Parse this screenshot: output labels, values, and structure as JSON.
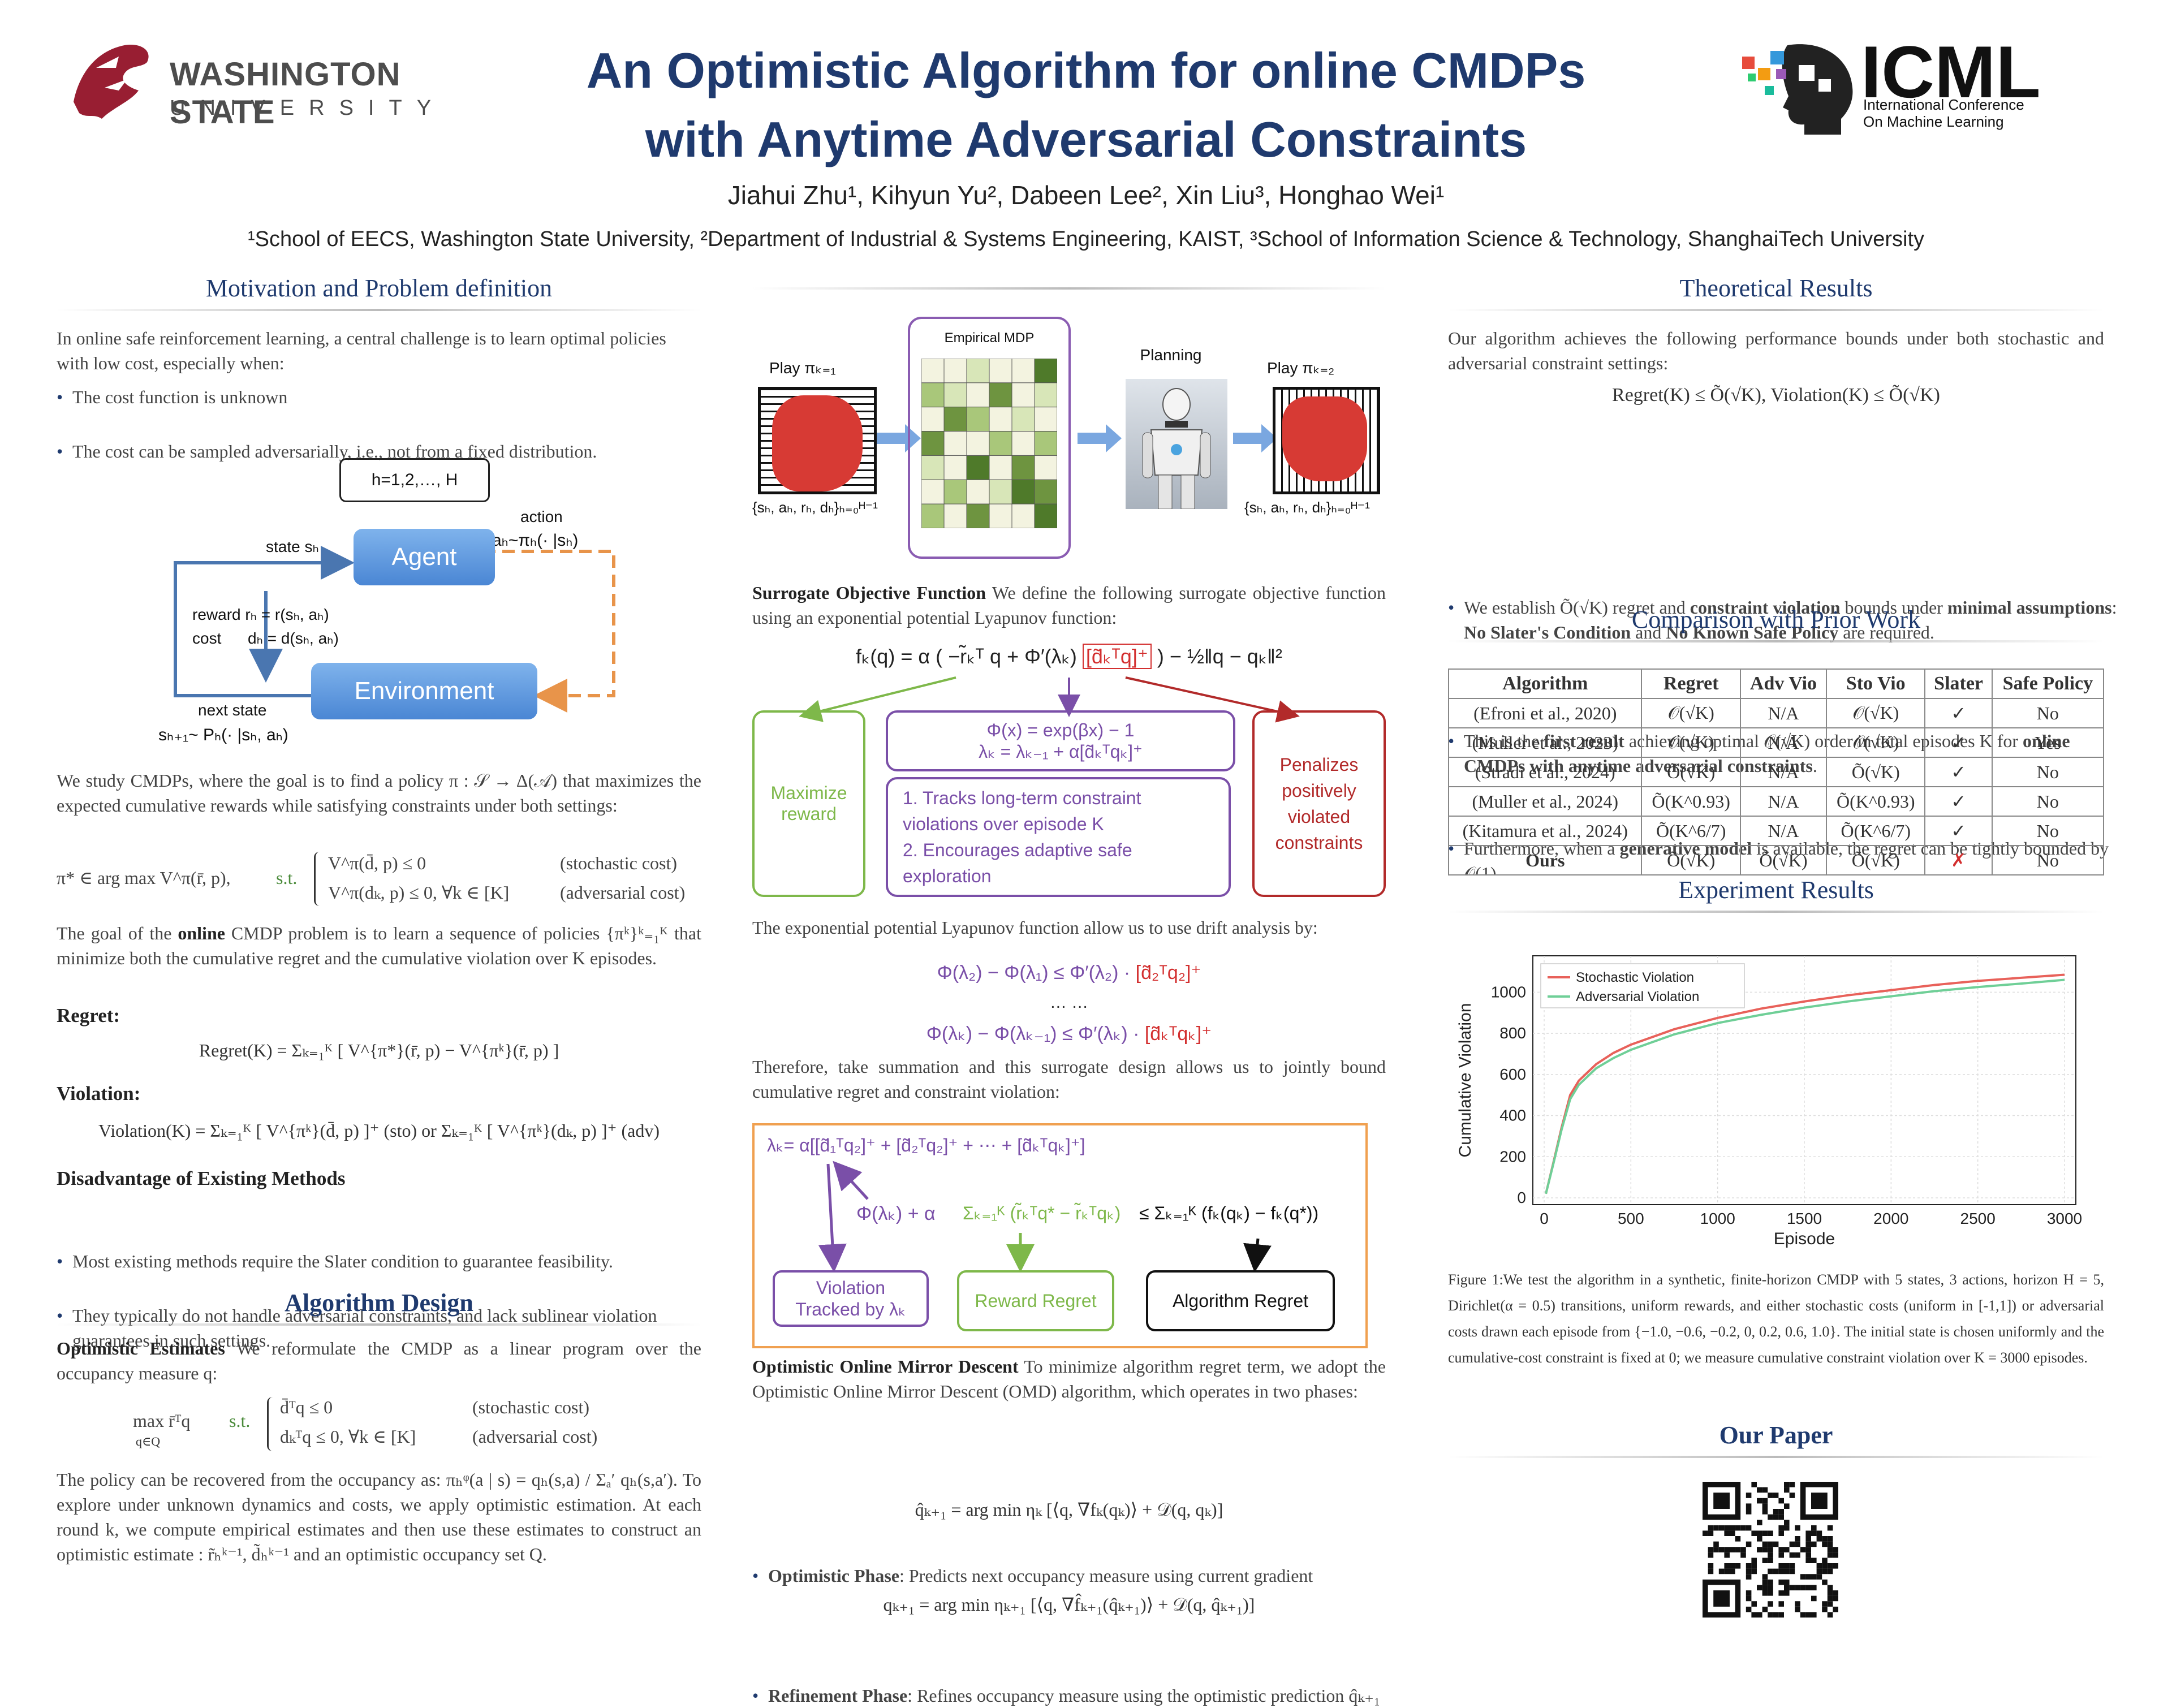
{
  "header": {
    "title_line1": "An Optimistic Algorithm for online CMDPs",
    "title_line2": "with Anytime Adversarial Constraints",
    "authors": "Jiahui Zhu¹, Kihyun Yu², Dabeen Lee², Xin Liu³, Honghao Wei¹",
    "affiliations": "¹School of EECS, Washington State University, ²Department of Industrial & Systems Engineering, KAIST, ³School of Information Science & Technology, ShanghaiTech University",
    "wsu_logo_line1": "WASHINGTON STATE",
    "wsu_logo_line2": "UNIVERSITY",
    "icml_logo": "ICML",
    "icml_sub1": "International Conference",
    "icml_sub2": "On Machine Learning"
  },
  "motivation": {
    "title": "Motivation and Problem definition",
    "intro": "In online safe reinforcement learning, a central challenge is to learn optimal policies with low cost, especially when:",
    "bullets": [
      "The cost function is unknown",
      "The cost can be sampled adversarially, i.e., not from a fixed distribution."
    ],
    "diagram": {
      "horizon": "h=1,2,…, H",
      "action": "action",
      "action_eq": "aₕ~πₕ(· |sₕ)",
      "state": "state sₕ",
      "agent": "Agent",
      "reward": "reward  rₕ = r(sₕ, aₕ)",
      "cost": "cost      dₕ = d(sₕ, aₕ)",
      "environment": "Environment",
      "next_state": "next state",
      "next_state_eq": "sₕ₊₁~ Pₕ(· |sₕ, aₕ)"
    },
    "cmdp_text": "We study CMDPs, where the goal is to find a policy π : 𝒮 → Δ(𝒜) that maximizes the expected cumulative rewards while satisfying constraints under both settings:",
    "opt_lhs": "π* ∈ arg max V^π(r̄, p),",
    "st": "s.t.",
    "c1": "V^π(d̄, p) ≤ 0",
    "c1_label": "(stochastic cost)",
    "c2": "V^π(dₖ, p) ≤ 0,  ∀k ∈ [K]",
    "c2_label": "(adversarial cost)",
    "goal_text_1": "The goal of the ",
    "goal_bold": "online",
    "goal_text_2": " CMDP problem is to learn a sequence of policies {πᵏ}ᵏ₌₁ᴷ that minimize both the cumulative regret and the cumulative violation over K episodes.",
    "regret_head": "Regret:",
    "regret_eq": "Regret(K) = Σₖ₌₁ᴷ [ V^{π*}(r̄, p) − V^{πᵏ}(r̄, p) ]",
    "violation_head": "Violation:",
    "violation_eq": "Violation(K) = Σₖ₌₁ᴷ [ V^{πᵏ}(d̄, p) ]⁺ (sto) or Σₖ₌₁ᴷ [ V^{πᵏ}(dₖ, p) ]⁺ (adv)",
    "disadv_head": "Disadvantage of Existing Methods",
    "disadv_bullets": [
      "Most existing methods require the Slater condition to guarantee feasibility.",
      "They typically do not handle adversarial constraints, and lack sublinear violation guarantees in such settings."
    ]
  },
  "algorithm": {
    "title": "Algorithm Design",
    "opt_head": "Optimistic Estimates",
    "opt_text": " We reformulate the CMDP as a linear program over the occupancy measure q:",
    "lp_obj": "max r̄ᵀq",
    "lp_under": "q∈Q",
    "st": "s.t.",
    "lp_c1": "d̄ᵀq ≤ 0",
    "lp_c1_label": "(stochastic cost)",
    "lp_c2": "dₖᵀq ≤ 0, ∀k ∈ [K]",
    "lp_c2_label": "(adversarial cost)",
    "policy_text": "The policy can be recovered from the occupancy as: πₕᵠ(a | s) = qₕ(s,a) / Σₐ′ qₕ(s,a′). To explore under unknown dynamics and costs, we apply optimistic estimation. At each round k, we compute empirical estimates and then use these estimates to construct an optimistic estimate : r̃ₕᵏ⁻¹, d̃ₕᵏ⁻¹ and an optimistic occupancy set Q."
  },
  "pipeline": {
    "play1": "Play πₖ₌₁",
    "tuple1": "{sₕ, aₕ, rₕ, dₕ}ₕ₌₀ᴴ⁻¹",
    "empirical": "Empirical MDP",
    "planning": "Planning",
    "play2": "Play πₖ₌₂",
    "tuple2": "{sₕ, aₕ, rₕ, dₕ}ₕ₌₀ᴴ⁻¹"
  },
  "surrogate": {
    "head": "Surrogate Objective Function",
    "text": " We define the following surrogate objective function using an exponential potential Lyapunov function:",
    "eq_left": "fₖ(q) = α ( −r̃ₖᵀ q + Φ′(λₖ) ",
    "eq_red": "[d̃ₖᵀq]⁺",
    "eq_right": " ) − ½‖q − qₖ‖²",
    "box_left": "Maximize reward",
    "box_mid_eq1": "Φ(x) = exp(βx) − 1",
    "box_mid_eq2": "λₖ = λₖ₋₁ + α[d̃ₖᵀqₖ]⁺",
    "box_mid_text": "1. Tracks long-term constraint violations over episode K\n2. Encourages adaptive safe exploration",
    "box_right": "Penalizes positively violated constraints",
    "drift_text": "The exponential potential Lyapunov function allow us to use drift analysis by:",
    "drift_eq1": "Φ(λ₂) − Φ(λ₁) ≤ Φ′(λ₂) · ",
    "drift_eq1_red": "[d̃₂ᵀq₂]⁺",
    "dots": "… …",
    "drift_eq2": "Φ(λₖ) − Φ(λₖ₋₁) ≤ Φ′(λₖ) · ",
    "drift_eq2_red": "[d̃ₖᵀqₖ]⁺",
    "sum_text": "Therefore, take summation and this surrogate design allows us to jointly bound cumulative regret and constraint violation:",
    "lam_eq": "λₖ= α[[d̃₁ᵀq₂]⁺ + [d̃₂ᵀq₂]⁺ + ⋯ + [d̃ₖᵀqₖ]⁺]",
    "bound_phi": "Φ(λₖ) + α",
    "bound_reward": "Σₖ₌₁ᴷ (r̃ₖᵀq* − r̃ₖᵀqₖ)",
    "bound_right": "≤ Σₖ₌₁ᴷ (fₖ(qₖ) − fₖ(q*))",
    "viol_box": "Violation Tracked by λₖ",
    "reward_box": "Reward Regret",
    "alg_box": "Algorithm Regret"
  },
  "omd": {
    "head": "Optimistic Online Mirror Descent",
    "text": " To minimize algorithm regret term, we adopt the Optimistic Online Mirror Descent (OMD) algorithm, which operates in two phases:",
    "phase1_head": "Optimistic Phase",
    "phase1_text": ": Predicts next occupancy measure using current gradient",
    "phase1_eq": "q̂ₖ₊₁ = arg min ηₖ [⟨q, ∇fₖ(qₖ)⟩ + 𝒟(q, qₖ)]",
    "phase2_head": "Refinement Phase",
    "phase2_text": ": Refines occupancy measure using the optimistic prediction q̂ₖ₊₁",
    "phase2_eq": "qₖ₊₁ = arg min ηₖ₊₁ [⟨q, ∇f̂ₖ₊₁(q̂ₖ₊₁)⟩ + 𝒟(q, q̂ₖ₊₁)]"
  },
  "theory": {
    "title": "Theoretical Results",
    "intro": "Our algorithm achieves the following performance bounds under both stochastic and adversarial constraint settings:",
    "bound": "Regret(K) ≤ Õ(√K),    Violation(K) ≤ Õ(√K)",
    "b1_a": "We establish Õ(√K) regret and ",
    "b1_b": "constraint violation",
    "b1_c": " bounds under ",
    "b1_d": "minimal assumptions",
    "b1_e": ": ",
    "b1_f": "No Slater's Condition",
    "b1_g": " and ",
    "b1_h": "No Known Safe Policy",
    "b1_i": " are required.",
    "b2_a": "This is the ",
    "b2_b": "first result",
    "b2_c": " achieving optimal 𝒪(√K) order in total episodes K for ",
    "b2_d": "online CMDPs with anytime adversarial constraints",
    "b2_e": ".",
    "b3_a": "Furthermore, when a ",
    "b3_b": "generative model",
    "b3_c": " is available, the regret can be tightly bounded by 𝒪(1)."
  },
  "comparison": {
    "title": "Comparison with Prior Work",
    "headers": [
      "Algorithm",
      "Regret",
      "Adv Vio",
      "Sto Vio",
      "Slater",
      "Safe Policy"
    ],
    "rows": [
      [
        "(Efroni et al., 2020)",
        "𝒪(√K)",
        "N/A",
        "𝒪(√K)",
        "✓",
        "No"
      ],
      [
        "(Muller et al., 2023)",
        "𝒪(√K)",
        "N/A",
        "𝒪(√K)",
        "✓",
        "Yes"
      ],
      [
        "(Stradi et al., 2024)",
        "Õ(√K)",
        "N/A",
        "Õ(√K)",
        "✓",
        "No"
      ],
      [
        "(Muller et al., 2024)",
        "Õ(K^0.93)",
        "N/A",
        "Õ(K^0.93)",
        "✓",
        "No"
      ],
      [
        "(Kitamura et al., 2024)",
        "Õ(K^6/7)",
        "N/A",
        "Õ(K^6/7)",
        "✓",
        "No"
      ],
      [
        "Ours",
        "Õ(√K)",
        "Õ(√K)",
        "Õ(√K)",
        "✗",
        "No"
      ]
    ]
  },
  "experiment": {
    "title": "Experiment Results",
    "caption": "Figure 1:We test the algorithm in a synthetic, finite-horizon CMDP with 5 states, 3 actions, horizon H = 5, Dirichlet(α = 0.5) transitions, uniform rewards, and either stochastic costs (uniform in [-1,1]) or adversarial costs drawn each episode from {−1.0, −0.6, −0.2, 0, 0.2, 0.6, 1.0}. The initial state is chosen uniformly and the cumulative-cost constraint is fixed at 0; we measure cumulative constraint violation over K = 3000 episodes."
  },
  "paper": {
    "title": "Our Paper"
  },
  "colors": {
    "navy": "#1f3a6e",
    "stoch": "#e8615a",
    "adv": "#6fcf97",
    "purple": "#7a4fa8",
    "green": "#7eb84a",
    "red": "#d32f2f",
    "orange": "#f0a050"
  },
  "chart_data": {
    "type": "line",
    "xlabel": "Episode",
    "ylabel": "Cumulative Violation",
    "xlim": [
      0,
      3000
    ],
    "ylim": [
      0,
      1100
    ],
    "xticks": [
      0,
      500,
      1000,
      1500,
      2000,
      2500,
      3000
    ],
    "yticks": [
      0,
      200,
      400,
      600,
      800,
      1000
    ],
    "grid": true,
    "legend": "top-left",
    "x": [
      10,
      50,
      100,
      150,
      200,
      300,
      400,
      500,
      750,
      1000,
      1250,
      1500,
      1750,
      2000,
      2250,
      2500,
      2750,
      3000
    ],
    "series": [
      {
        "name": "Stochastic Violation",
        "values": [
          20,
          160,
          340,
          500,
          570,
          650,
          705,
          745,
          820,
          875,
          920,
          955,
          985,
          1010,
          1035,
          1055,
          1070,
          1085
        ]
      },
      {
        "name": "Adversarial Violation",
        "values": [
          20,
          155,
          330,
          480,
          550,
          630,
          680,
          720,
          795,
          850,
          890,
          925,
          955,
          980,
          1005,
          1025,
          1042,
          1060
        ]
      }
    ]
  }
}
